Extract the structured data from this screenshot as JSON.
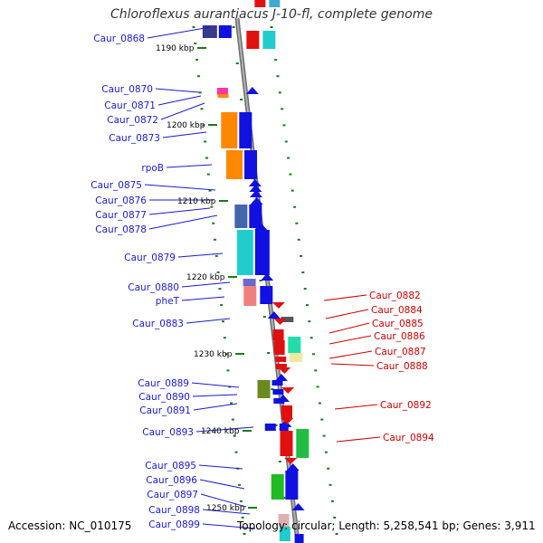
{
  "title": "Chloroflexus aurantiacus J-10-fl, complete genome",
  "footer": {
    "accession": "Accession: NC_010175",
    "summary": "Topology: circular; Length: 5,258,541 bp; Genes: 3,911"
  },
  "colors": {
    "backbone": "#8a8a8a",
    "left_label": "#1a1acc",
    "right_label": "#cc0000",
    "tick": "#1a7a1a",
    "forward_gene": "#1010e0",
    "reverse_gene": "#e01010"
  },
  "scale_labels": [
    "1190 kbp",
    "1200 kbp",
    "1210 kbp",
    "1220 kbp",
    "1230 kbp",
    "1240 kbp",
    "1250 kbp"
  ],
  "left_genes": [
    "Caur_0868",
    "Caur_0870",
    "Caur_0871",
    "Caur_0872",
    "Caur_0873",
    "rpoB",
    "Caur_0875",
    "Caur_0876",
    "Caur_0877",
    "Caur_0878",
    "Caur_0879",
    "Caur_0880",
    "pheT",
    "Caur_0883",
    "Caur_0889",
    "Caur_0890",
    "Caur_0891",
    "Caur_0893",
    "Caur_0895",
    "Caur_0896",
    "Caur_0897",
    "Caur_0898",
    "Caur_0899"
  ],
  "right_genes": [
    "Caur_0882",
    "Caur_0884",
    "Caur_0885",
    "Caur_0886",
    "Caur_0887",
    "Caur_0888",
    "Caur_0892",
    "Caur_0894"
  ]
}
